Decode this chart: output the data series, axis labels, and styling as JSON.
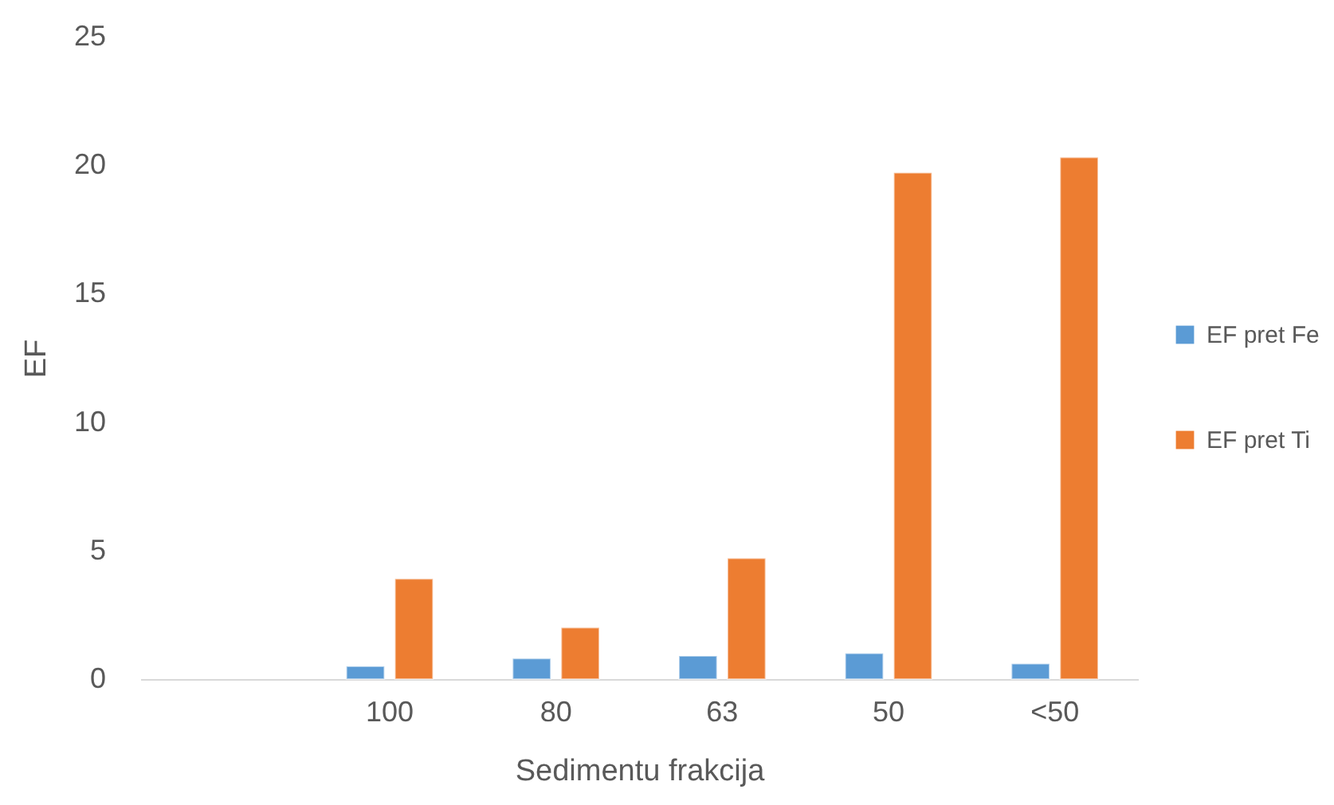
{
  "chart_data": {
    "type": "bar",
    "xlabel": "Sedimentu frakcija",
    "ylabel": "EF",
    "categories": [
      null,
      "100",
      "80",
      "63",
      "50",
      "<50"
    ],
    "series": [
      {
        "name": "EF pret Fe",
        "color": "#5b9bd5",
        "values": [
          null,
          0.5,
          0.8,
          0.9,
          1.0,
          0.6
        ]
      },
      {
        "name": "EF pret Ti",
        "color": "#ed7d31",
        "values": [
          null,
          3.9,
          2.0,
          4.7,
          19.7,
          20.3
        ]
      }
    ],
    "ylim": [
      0,
      25
    ],
    "yticks": [
      0,
      5,
      10,
      15,
      20,
      25
    ],
    "grid": false,
    "legend": "right"
  }
}
